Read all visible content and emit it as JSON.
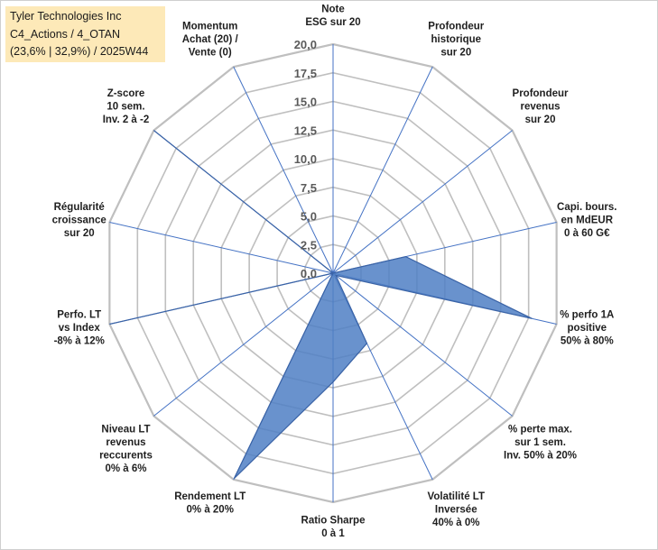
{
  "header": {
    "line1": "Tyler Technologies Inc",
    "line2": "C4_Actions / 4_OTAN",
    "line3": "(23,6% | 32,9%) / 2025W44"
  },
  "chart_data": {
    "type": "radar",
    "title": "",
    "rmin": 0,
    "rmax": 20,
    "ticks": [
      "0,0",
      "2,5",
      "5,0",
      "7,5",
      "10,0",
      "12,5",
      "15,0",
      "17,5",
      "20,0"
    ],
    "grid": true,
    "axes": [
      {
        "lines": [
          "Note",
          "ESG sur 20"
        ]
      },
      {
        "lines": [
          "Profondeur",
          "historique",
          "sur 20"
        ]
      },
      {
        "lines": [
          "Profondeur",
          "revenus",
          "sur 20"
        ]
      },
      {
        "lines": [
          "Capi. bours.",
          "en MdEUR",
          "0 à 60 G€"
        ]
      },
      {
        "lines": [
          "% perfo 1A",
          "positive",
          "50% à 80%"
        ]
      },
      {
        "lines": [
          "% perte max.",
          "sur 1 sem.",
          "Inv. 50% à 20%"
        ]
      },
      {
        "lines": [
          "Volatilité LT",
          "Inversée",
          "40% à 0%"
        ]
      },
      {
        "lines": [
          "Ratio Sharpe",
          "0 à 1"
        ]
      },
      {
        "lines": [
          "Rendement LT",
          "0% à 20%"
        ]
      },
      {
        "lines": [
          "Niveau LT",
          "revenus",
          "reccurents",
          "0% à 6%"
        ]
      },
      {
        "lines": [
          "Perfo. LT",
          "vs Index",
          "-8% à 12%"
        ]
      },
      {
        "lines": [
          "Régularité",
          "croissance",
          "sur 20"
        ]
      },
      {
        "lines": [
          "Z-score",
          "10 sem.",
          "Inv. 2 à -2"
        ]
      },
      {
        "lines": [
          "Momentum",
          "Achat (20) /",
          "Vente (0)"
        ]
      }
    ],
    "series": [
      {
        "values": [
          0,
          0,
          0,
          6.5,
          17.8,
          0.3,
          6.8,
          9.5,
          19.9,
          0,
          20,
          0,
          20,
          0
        ],
        "color": "#4f7fc4",
        "stroke": "#3a63a6"
      }
    ],
    "colors": {
      "grid": "#bfbfbf",
      "axis": "#4472c4"
    }
  }
}
